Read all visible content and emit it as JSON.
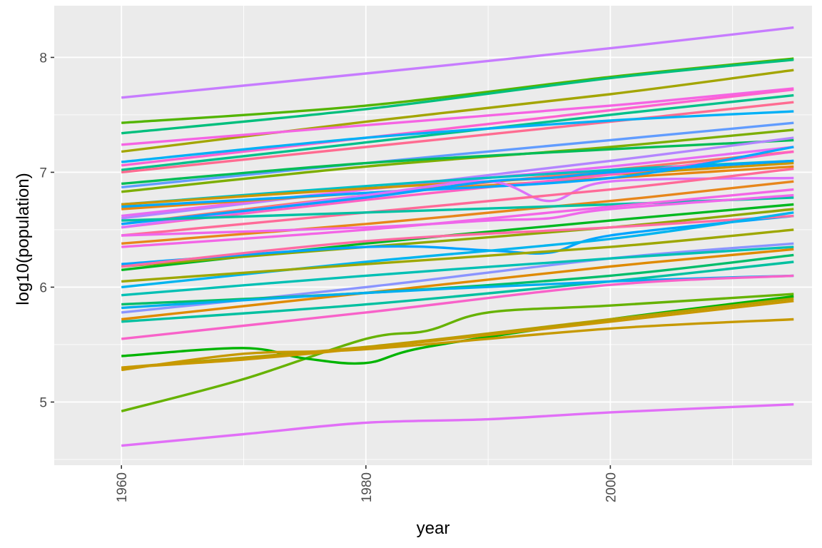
{
  "chart_data": {
    "type": "line",
    "title": "",
    "xlabel": "year",
    "ylabel": "log10(population)",
    "xlim": [
      1954.5,
      2016.5
    ],
    "ylim": [
      4.45,
      8.45
    ],
    "x_ticks": [
      1960,
      1980,
      2000
    ],
    "y_ticks": [
      5,
      6,
      7,
      8
    ],
    "x_tick_labels": [
      "1960",
      "1980",
      "2000"
    ],
    "y_tick_labels": [
      "5",
      "6",
      "7",
      "8"
    ],
    "grid": true,
    "legend": "none",
    "background": "#ebebeb",
    "series": [
      {
        "color": "#c77cff",
        "x": [
          1960,
          1980,
          2000,
          2015
        ],
        "y": [
          7.65,
          7.86,
          8.08,
          8.26
        ]
      },
      {
        "color": "#53b400",
        "x": [
          1960,
          1980,
          2000,
          2015
        ],
        "y": [
          7.43,
          7.58,
          7.83,
          7.99
        ]
      },
      {
        "color": "#00bf7d",
        "x": [
          1960,
          1980,
          2000,
          2015
        ],
        "y": [
          7.34,
          7.55,
          7.82,
          7.98
        ]
      },
      {
        "color": "#a3a500",
        "x": [
          1960,
          1980,
          2000,
          2015
        ],
        "y": [
          7.18,
          7.44,
          7.68,
          7.89
        ]
      },
      {
        "color": "#f564e3",
        "x": [
          1960,
          1980,
          2000,
          2015
        ],
        "y": [
          7.24,
          7.41,
          7.58,
          7.73
        ]
      },
      {
        "color": "#fd61d1",
        "x": [
          1960,
          1980,
          2000,
          2015
        ],
        "y": [
          7.06,
          7.3,
          7.54,
          7.72
        ]
      },
      {
        "color": "#00c08b",
        "x": [
          1960,
          1980,
          2000,
          2015
        ],
        "y": [
          7.02,
          7.26,
          7.5,
          7.67
        ]
      },
      {
        "color": "#ff6c91",
        "x": [
          1960,
          1980,
          2000,
          2015
        ],
        "y": [
          7.0,
          7.22,
          7.44,
          7.61
        ]
      },
      {
        "color": "#00b0f6",
        "x": [
          1960,
          1980,
          2000,
          2015
        ],
        "y": [
          7.09,
          7.3,
          7.45,
          7.53
        ]
      },
      {
        "color": "#619cff",
        "x": [
          1960,
          1980,
          2000,
          2015
        ],
        "y": [
          6.87,
          7.08,
          7.28,
          7.43
        ]
      },
      {
        "color": "#7cae00",
        "x": [
          1960,
          1980,
          2000,
          2015
        ],
        "y": [
          6.83,
          7.05,
          7.22,
          7.37
        ]
      },
      {
        "color": "#00bc56",
        "x": [
          1960,
          1980,
          2000,
          2015
        ],
        "y": [
          6.9,
          7.08,
          7.2,
          7.28
        ]
      },
      {
        "color": "#b385ff",
        "x": [
          1960,
          1980,
          2000,
          2015
        ],
        "y": [
          6.6,
          6.85,
          7.1,
          7.3
        ]
      },
      {
        "color": "#e76bf3",
        "x": [
          1960,
          1980,
          2000,
          2015
        ],
        "y": [
          6.62,
          6.85,
          7.05,
          7.22
        ]
      },
      {
        "color": "#f8766d",
        "x": [
          1960,
          1980,
          2000,
          2015
        ],
        "y": [
          6.55,
          6.8,
          7.02,
          7.18
        ]
      },
      {
        "color": "#00bfc4",
        "x": [
          1960,
          1980,
          2000,
          2015
        ],
        "y": [
          6.72,
          6.88,
          7.02,
          7.1
        ]
      },
      {
        "color": "#e68613",
        "x": [
          1960,
          1980,
          2000,
          2015
        ],
        "y": [
          6.68,
          6.82,
          6.95,
          7.05
        ]
      },
      {
        "color": "#cd9600",
        "x": [
          1960,
          1980,
          2000,
          2015
        ],
        "y": [
          6.72,
          6.86,
          6.98,
          7.08
        ]
      },
      {
        "color": "#ff61c3",
        "x": [
          1960,
          1980,
          2000,
          2015
        ],
        "y": [
          6.52,
          6.76,
          6.98,
          7.18
        ]
      },
      {
        "color": "#00a9ff",
        "x": [
          1960,
          1980,
          2000,
          2015
        ],
        "y": [
          6.7,
          6.82,
          6.95,
          7.22
        ]
      },
      {
        "color": "#dc71fa",
        "x": [
          1960,
          1980,
          1990,
          1995,
          2000,
          2015
        ],
        "y": [
          6.52,
          6.8,
          6.92,
          6.75,
          6.92,
          6.95
        ]
      },
      {
        "color": "#00a5ff",
        "x": [
          1960,
          1980,
          1990,
          1995,
          2000,
          2015
        ],
        "y": [
          6.55,
          6.78,
          6.92,
          6.95,
          7.0,
          7.1
        ]
      },
      {
        "color": "#ff6a98",
        "x": [
          1960,
          1980,
          2000,
          2015
        ],
        "y": [
          6.45,
          6.65,
          6.85,
          7.03
        ]
      },
      {
        "color": "#e7861b",
        "x": [
          1960,
          1980,
          2000,
          2015
        ],
        "y": [
          6.38,
          6.55,
          6.75,
          6.92
        ]
      },
      {
        "color": "#00c1a3",
        "x": [
          1960,
          1980,
          2000,
          2015
        ],
        "y": [
          6.58,
          6.65,
          6.72,
          6.78
        ]
      },
      {
        "color": "#f365e6",
        "x": [
          1960,
          1980,
          2000,
          2015
        ],
        "y": [
          6.35,
          6.5,
          6.7,
          6.85
        ]
      },
      {
        "color": "#ef67eb",
        "x": [
          1960,
          1980,
          1990,
          1995,
          2000,
          2015
        ],
        "y": [
          6.45,
          6.52,
          6.58,
          6.6,
          6.68,
          6.8
        ]
      },
      {
        "color": "#00b81f",
        "x": [
          1960,
          1980,
          2000,
          2015
        ],
        "y": [
          6.15,
          6.38,
          6.58,
          6.72
        ]
      },
      {
        "color": "#8fa700",
        "x": [
          1960,
          1980,
          2000,
          2015
        ],
        "y": [
          6.18,
          6.35,
          6.52,
          6.68
        ]
      },
      {
        "color": "#00a4ff",
        "x": [
          1960,
          1980,
          1990,
          1995,
          2000,
          2015
        ],
        "y": [
          6.2,
          6.35,
          6.32,
          6.3,
          6.45,
          6.62
        ]
      },
      {
        "color": "#ff6ba3",
        "x": [
          1960,
          1980,
          2000,
          2015
        ],
        "y": [
          6.18,
          6.4,
          6.52,
          6.62
        ]
      },
      {
        "color": "#00b4ef",
        "x": [
          1960,
          1980,
          2000,
          2015
        ],
        "y": [
          6.0,
          6.22,
          6.42,
          6.65
        ]
      },
      {
        "color": "#9da700",
        "x": [
          1960,
          1980,
          2000,
          2015
        ],
        "y": [
          6.05,
          6.2,
          6.35,
          6.5
        ]
      },
      {
        "color": "#8a94ff",
        "x": [
          1960,
          1980,
          2000,
          2015
        ],
        "y": [
          5.78,
          6.0,
          6.25,
          6.38
        ]
      },
      {
        "color": "#00c0b4",
        "x": [
          1960,
          1980,
          2000,
          2015
        ],
        "y": [
          5.93,
          6.1,
          6.25,
          6.35
        ]
      },
      {
        "color": "#df8a00",
        "x": [
          1960,
          1980,
          2000,
          2015
        ],
        "y": [
          5.72,
          5.95,
          6.18,
          6.33
        ]
      },
      {
        "color": "#00bd6a",
        "x": [
          1960,
          1980,
          2000,
          2015
        ],
        "y": [
          5.85,
          5.95,
          6.1,
          6.28
        ]
      },
      {
        "color": "#00c0a0",
        "x": [
          1960,
          1980,
          2000,
          2015
        ],
        "y": [
          5.7,
          5.85,
          6.05,
          6.22
        ]
      },
      {
        "color": "#00aeef",
        "x": [
          1960,
          1980,
          2000,
          2015
        ],
        "y": [
          5.82,
          5.95,
          6.05,
          6.1
        ]
      },
      {
        "color": "#f862c9",
        "x": [
          1960,
          1980,
          2000,
          2015
        ],
        "y": [
          5.55,
          5.78,
          6.02,
          6.1
        ]
      },
      {
        "color": "#66b200",
        "x": [
          1960,
          1970,
          1980,
          1985,
          1990,
          2000,
          2015
        ],
        "y": [
          4.92,
          5.2,
          5.55,
          5.62,
          5.78,
          5.84,
          5.94
        ]
      },
      {
        "color": "#00b400",
        "x": [
          1960,
          1970,
          1975,
          1980,
          1985,
          2000,
          2015
        ],
        "y": [
          5.4,
          5.47,
          5.38,
          5.34,
          5.48,
          5.72,
          5.92
        ]
      },
      {
        "color": "#b69e00",
        "x": [
          1960,
          1980,
          2000,
          2015
        ],
        "y": [
          5.3,
          5.48,
          5.72,
          5.9
        ]
      },
      {
        "color": "#c69900",
        "x": [
          1960,
          1970,
          1980,
          2000,
          2015
        ],
        "y": [
          5.28,
          5.42,
          5.46,
          5.64,
          5.72
        ]
      },
      {
        "color": "#c99800",
        "x": [
          1960,
          1970,
          1980,
          2000,
          2015
        ],
        "y": [
          5.3,
          5.37,
          5.47,
          5.7,
          5.88
        ]
      },
      {
        "color": "#e16ff7",
        "x": [
          1960,
          1970,
          1980,
          1990,
          2000,
          2015
        ],
        "y": [
          4.62,
          4.72,
          4.82,
          4.85,
          4.91,
          4.98
        ]
      }
    ]
  }
}
